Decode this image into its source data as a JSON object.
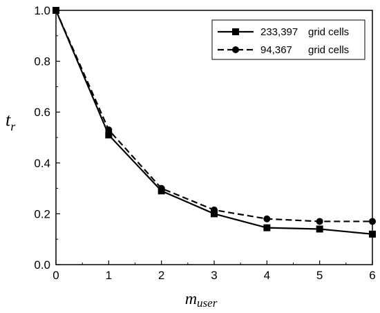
{
  "chart_data": {
    "type": "line",
    "x": [
      0,
      1,
      2,
      3,
      4,
      5,
      6
    ],
    "series": [
      {
        "name_num": "233,397",
        "name_text": "grid cells",
        "values": [
          1.0,
          0.51,
          0.29,
          0.2,
          0.145,
          0.14,
          0.12
        ],
        "line_style": "solid",
        "marker": "square",
        "color": "#000000"
      },
      {
        "name_num": "94,367",
        "name_text": "grid cells",
        "values": [
          1.0,
          0.53,
          0.3,
          0.215,
          0.18,
          0.17,
          0.17
        ],
        "line_style": "dashed",
        "marker": "circle",
        "color": "#000000"
      }
    ],
    "xlabel_main": "m",
    "xlabel_sub": "user",
    "ylabel_main": "t",
    "ylabel_sub": "r",
    "xlim": [
      0,
      6
    ],
    "ylim": [
      0.0,
      1.0
    ],
    "xticks": [
      "0",
      "1",
      "2",
      "3",
      "4",
      "5",
      "6"
    ],
    "yticks": [
      "0.0",
      "0.2",
      "0.4",
      "0.6",
      "0.8",
      "1.0"
    ],
    "grid": false,
    "legend_position": "top-right"
  }
}
